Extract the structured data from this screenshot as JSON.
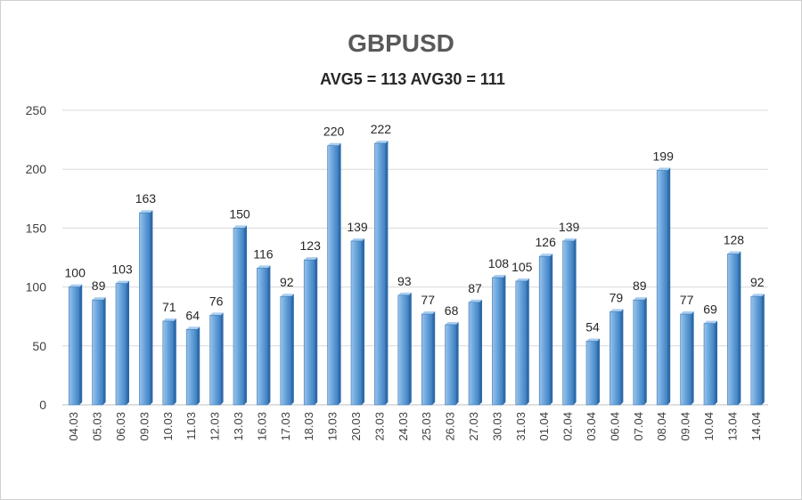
{
  "chart_data": {
    "type": "bar",
    "title": "GBPUSD",
    "subtitle": "AVG5 = 113 AVG30 = 111",
    "xlabel": "",
    "ylabel": "",
    "ylim": [
      0,
      250
    ],
    "yticks": [
      0,
      50,
      100,
      150,
      200,
      250
    ],
    "grid": true,
    "legend": "none",
    "bar_color": "#5b9bd5",
    "categories": [
      "04.03",
      "05.03",
      "06.03",
      "09.03",
      "10.03",
      "11.03",
      "12.03",
      "13.03",
      "16.03",
      "17.03",
      "18.03",
      "19.03",
      "20.03",
      "23.03",
      "24.03",
      "25.03",
      "26.03",
      "27.03",
      "30.03",
      "31.03",
      "01.04",
      "02.04",
      "03.04",
      "06.04",
      "07.04",
      "08.04",
      "09.04",
      "10.04",
      "13.04",
      "14.04"
    ],
    "values": [
      100,
      89,
      103,
      163,
      71,
      64,
      76,
      150,
      116,
      92,
      123,
      220,
      139,
      222,
      93,
      77,
      68,
      87,
      108,
      105,
      126,
      139,
      54,
      79,
      89,
      199,
      77,
      69,
      128,
      92
    ]
  }
}
